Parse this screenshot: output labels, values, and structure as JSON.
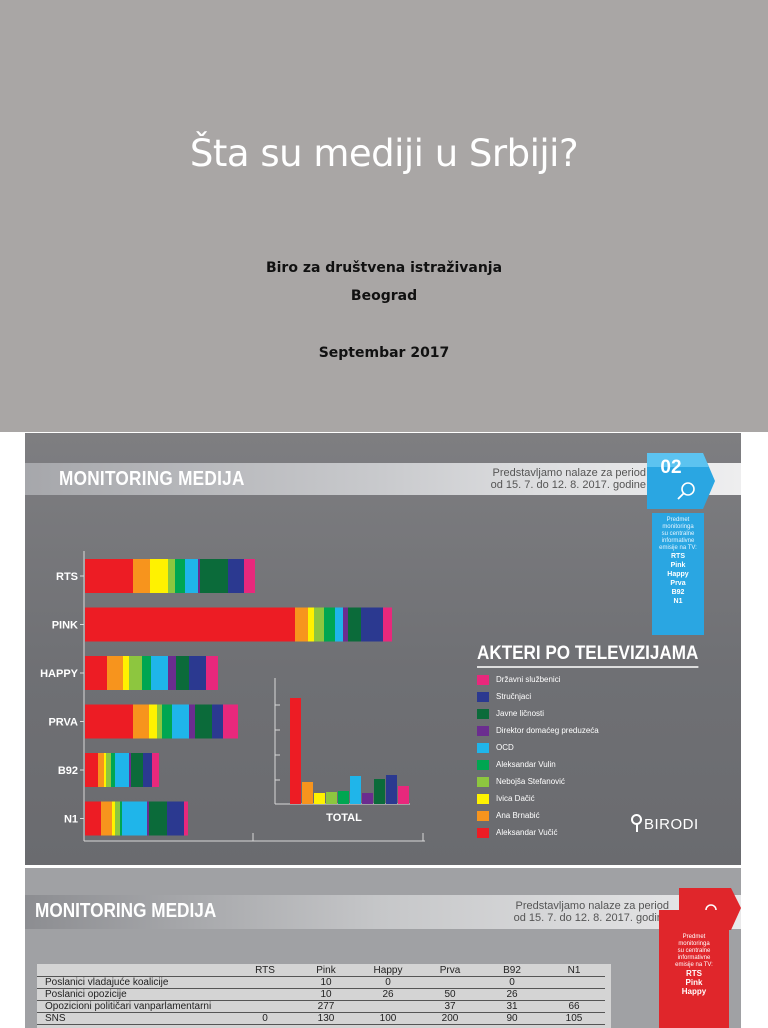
{
  "title_slide": {
    "title": "Šta su mediji u Srbiji?",
    "line1": "Biro za društvena istraživanja",
    "line2": "Beograd",
    "line3": "Septembar 2017"
  },
  "slide2": {
    "header_title": "MONITORING MEDIJA",
    "period_line1": "Predstavljamo nalaze za period",
    "period_line2": "od 15. 7. do 12. 8. 2017. godine",
    "badge_number": "02",
    "ribbon_lines": [
      "Predmet",
      "monitoringa",
      "su centralne",
      "informativne",
      "emisije na TV:"
    ],
    "ribbon_channels": [
      "RTS",
      "Pink",
      "Happy",
      "Prva",
      "B92",
      "N1"
    ],
    "legend_title": "AKTERI PO TELEVIZIJAMA",
    "legend": [
      {
        "label": "Državni službenici",
        "color": "#e8287c"
      },
      {
        "label": "Stručnjaci",
        "color": "#2b3990"
      },
      {
        "label": "Javne ličnosti",
        "color": "#0b6b3a"
      },
      {
        "label": "Direktor domaćeg preduzeća",
        "color": "#6b2d8f"
      },
      {
        "label": "OCD",
        "color": "#1fb5ea"
      },
      {
        "label": "Aleksandar Vulin",
        "color": "#00a651"
      },
      {
        "label": "Nebojša Stefanović",
        "color": "#8dc63f"
      },
      {
        "label": "Ivica Dačić",
        "color": "#fff200"
      },
      {
        "label": "Ana Brnabić",
        "color": "#f7941d"
      },
      {
        "label": "Aleksandar Vučić",
        "color": "#ed1c24"
      }
    ],
    "brand": "BIRODI",
    "chart_data": {
      "type": "bar",
      "orientation": "horizontal-stacked",
      "categories": [
        "RTS",
        "PINK",
        "HAPPY",
        "PRVA",
        "B92",
        "N1"
      ],
      "series_order": [
        "Aleksandar Vučić",
        "Ana Brnabić",
        "Ivica Dačić",
        "Nebojša Stefanović",
        "Aleksandar Vulin",
        "OCD",
        "Direktor domaćeg preduzeća",
        "Javne ličnosti",
        "Stručnjaci",
        "Državni službenici"
      ],
      "values": {
        "RTS": [
          48,
          17,
          18,
          7,
          10,
          13,
          2,
          28,
          16,
          11
        ],
        "PINK": [
          210,
          13,
          6,
          10,
          11,
          8,
          5,
          13,
          22,
          9
        ],
        "HAPPY": [
          22,
          16,
          6,
          13,
          9,
          17,
          8,
          13,
          17,
          12
        ],
        "PRVA": [
          48,
          16,
          8,
          5,
          10,
          17,
          6,
          17,
          11,
          15
        ],
        "B92": [
          13,
          6,
          2,
          5,
          4,
          14,
          2,
          12,
          9,
          7
        ],
        "N1": [
          16,
          11,
          3,
          5,
          2,
          25,
          2,
          18,
          17,
          4
        ]
      },
      "total": {
        "label": "TOTAL",
        "values": [
          106,
          22,
          11,
          12,
          13,
          28,
          11,
          25,
          29,
          18
        ]
      }
    }
  },
  "slide3": {
    "header_title": "MONITORING MEDIJA",
    "period_line1": "Predstavljamo nalaze za period",
    "period_line2": "od 15. 7. do 12. 8. 2017. godine",
    "ribbon_lines": [
      "Predmet",
      "monitoringa",
      "su centralne",
      "informativne",
      "emisije na TV:"
    ],
    "ribbon_channels": [
      "RTS",
      "Pink",
      "Happy"
    ],
    "table": {
      "headers": [
        "",
        "RTS",
        "Pink",
        "Happy",
        "Prva",
        "B92",
        "N1"
      ],
      "rows": [
        [
          "Poslanici vladajuće koalicije",
          "",
          "10",
          "0",
          "",
          "0",
          ""
        ],
        [
          "Poslanici opozicije",
          "",
          "10",
          "26",
          "50",
          "26",
          ""
        ],
        [
          "Opozicioni političari vanparlamentarni",
          "",
          "277",
          "",
          "37",
          "31",
          "66"
        ],
        [
          "SNS",
          "0",
          "130",
          "100",
          "200",
          "90",
          "105"
        ]
      ]
    }
  }
}
